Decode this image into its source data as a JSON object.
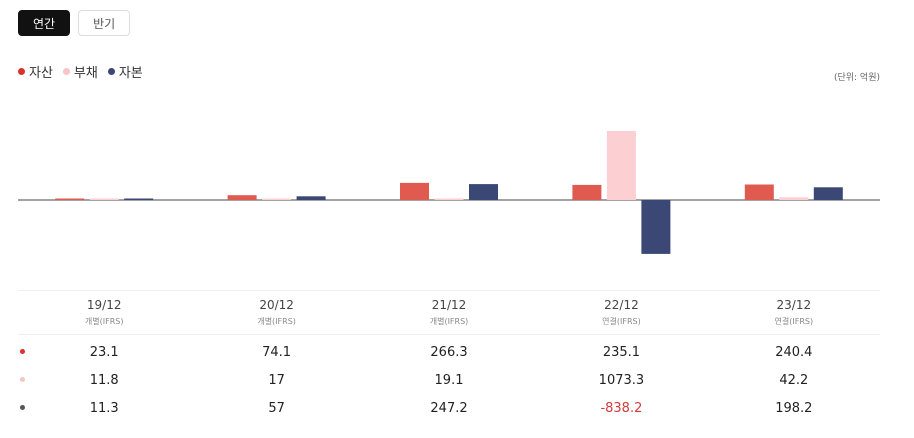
{
  "tabs": [
    {
      "label": "연간"
    },
    {
      "label": "반기"
    }
  ],
  "legend": [
    {
      "label": "자산",
      "color": "#e05a4f"
    },
    {
      "label": "부채",
      "color": "#fccfd2"
    },
    {
      "label": "자본",
      "color": "#3b4774"
    }
  ],
  "unit": "(단위: 억원)",
  "colors": {
    "asset": "#e05a4f",
    "liability": "#fccfd2",
    "equity": "#3b4774",
    "negative": "#d63b3b",
    "marker1": "#d9312b",
    "marker2": "#f5c6c6",
    "marker3": "#555555"
  },
  "table": {
    "headers": [
      {
        "period": "19/12",
        "basis": "개별(IFRS)"
      },
      {
        "period": "20/12",
        "basis": "개별(IFRS)"
      },
      {
        "period": "21/12",
        "basis": "개별(IFRS)"
      },
      {
        "period": "22/12",
        "basis": "연결(IFRS)"
      },
      {
        "period": "23/12",
        "basis": "연결(IFRS)"
      }
    ],
    "rows": [
      [
        "23.1",
        "74.1",
        "266.3",
        "235.1",
        "240.4"
      ],
      [
        "11.8",
        "17",
        "19.1",
        "1073.3",
        "42.2"
      ],
      [
        "11.3",
        "57",
        "247.2",
        "-838.2",
        "198.2"
      ]
    ]
  },
  "chart_data": {
    "type": "bar",
    "categories": [
      "19/12",
      "20/12",
      "21/12",
      "22/12",
      "23/12"
    ],
    "series": [
      {
        "name": "자산",
        "values": [
          23.1,
          74.1,
          266.3,
          235.1,
          240.4
        ]
      },
      {
        "name": "부채",
        "values": [
          11.8,
          17,
          19.1,
          1073.3,
          42.2
        ]
      },
      {
        "name": "자본",
        "values": [
          11.3,
          57,
          247.2,
          -838.2,
          198.2
        ]
      }
    ],
    "ylim": [
      -1400,
      1100
    ],
    "grid": false,
    "legend": "top-left"
  }
}
